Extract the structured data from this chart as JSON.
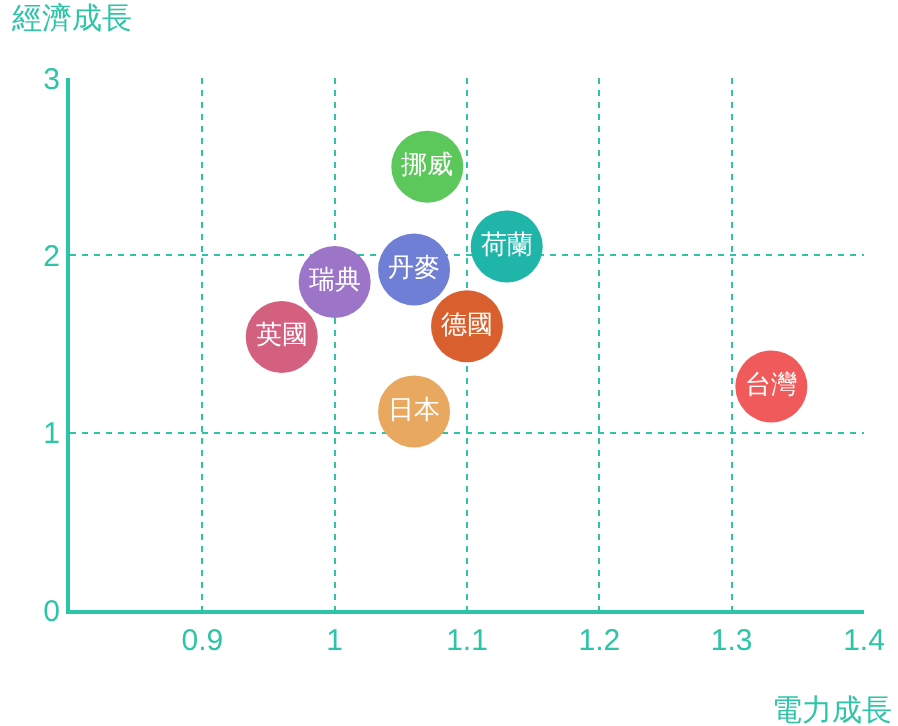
{
  "chart_data": {
    "type": "scatter",
    "xlabel": "電力成長",
    "ylabel": "經濟成長",
    "xlim": [
      0.8,
      1.4
    ],
    "xticks": [
      0.9,
      1,
      1.1,
      1.2,
      1.3,
      1.4
    ],
    "ylim": [
      0,
      3
    ],
    "yticks": [
      0,
      1,
      2,
      3
    ],
    "grid": true,
    "legend": false,
    "marker": "circle",
    "series": [
      {
        "name": "挪威",
        "color": "#5cc85c",
        "x": [
          1.07
        ],
        "values": [
          2.5
        ]
      },
      {
        "name": "荷蘭",
        "color": "#1fb5a8",
        "x": [
          1.13
        ],
        "values": [
          2.05
        ]
      },
      {
        "name": "丹麥",
        "color": "#6f7fd6",
        "x": [
          1.06
        ],
        "values": [
          1.92
        ]
      },
      {
        "name": "瑞典",
        "color": "#9c74c8",
        "x": [
          1.0
        ],
        "values": [
          1.85
        ]
      },
      {
        "name": "英國",
        "color": "#d4607f",
        "x": [
          0.96
        ],
        "values": [
          1.54
        ]
      },
      {
        "name": "德國",
        "color": "#d9602e",
        "x": [
          1.1
        ],
        "values": [
          1.6
        ]
      },
      {
        "name": "日本",
        "color": "#e8a860",
        "x": [
          1.06
        ],
        "values": [
          1.12
        ]
      },
      {
        "name": "台灣",
        "color": "#f05a5a",
        "x": [
          1.33
        ],
        "values": [
          1.26
        ]
      }
    ]
  }
}
